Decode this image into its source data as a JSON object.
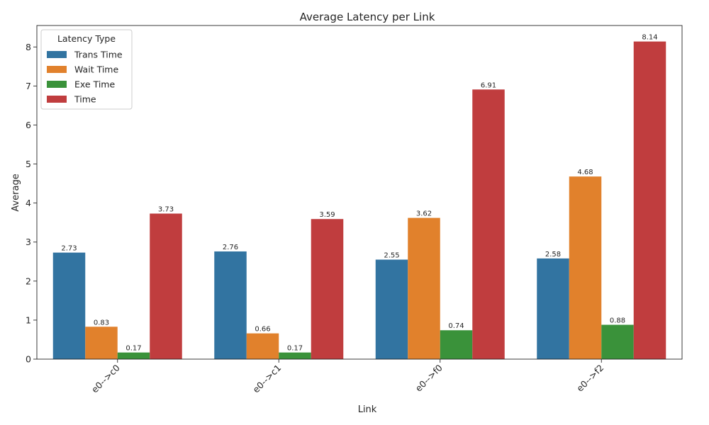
{
  "chart_data": {
    "type": "bar",
    "title": "Average Latency per Link",
    "xlabel": "Link",
    "ylabel": "Average",
    "ylim": [
      0,
      8.55
    ],
    "yticks": [
      0,
      1,
      2,
      3,
      4,
      5,
      6,
      7,
      8
    ],
    "categories": [
      "e0-->c0",
      "e0-->c1",
      "e0-->f0",
      "e0-->f2"
    ],
    "legend": {
      "title": "Latency Type",
      "position": "top-left"
    },
    "grid": false,
    "series": [
      {
        "name": "Trans Time",
        "color": "#3274a1",
        "values": [
          2.73,
          2.76,
          2.55,
          2.58
        ],
        "labels": [
          "2.73",
          "2.76",
          "2.55",
          "2.58"
        ]
      },
      {
        "name": "Wait Time",
        "color": "#e1812c",
        "values": [
          0.83,
          0.66,
          3.62,
          4.68
        ],
        "labels": [
          "0.83",
          "0.66",
          "3.62",
          "4.68"
        ]
      },
      {
        "name": "Exe Time",
        "color": "#3a923a",
        "values": [
          0.17,
          0.17,
          0.74,
          0.88
        ],
        "labels": [
          "0.17",
          "0.17",
          "0.74",
          "0.88"
        ]
      },
      {
        "name": "Time",
        "color": "#c03d3e",
        "values": [
          3.73,
          3.59,
          6.91,
          8.14
        ],
        "labels": [
          "3.73",
          "3.59",
          "6.91",
          "8.14"
        ]
      }
    ]
  }
}
